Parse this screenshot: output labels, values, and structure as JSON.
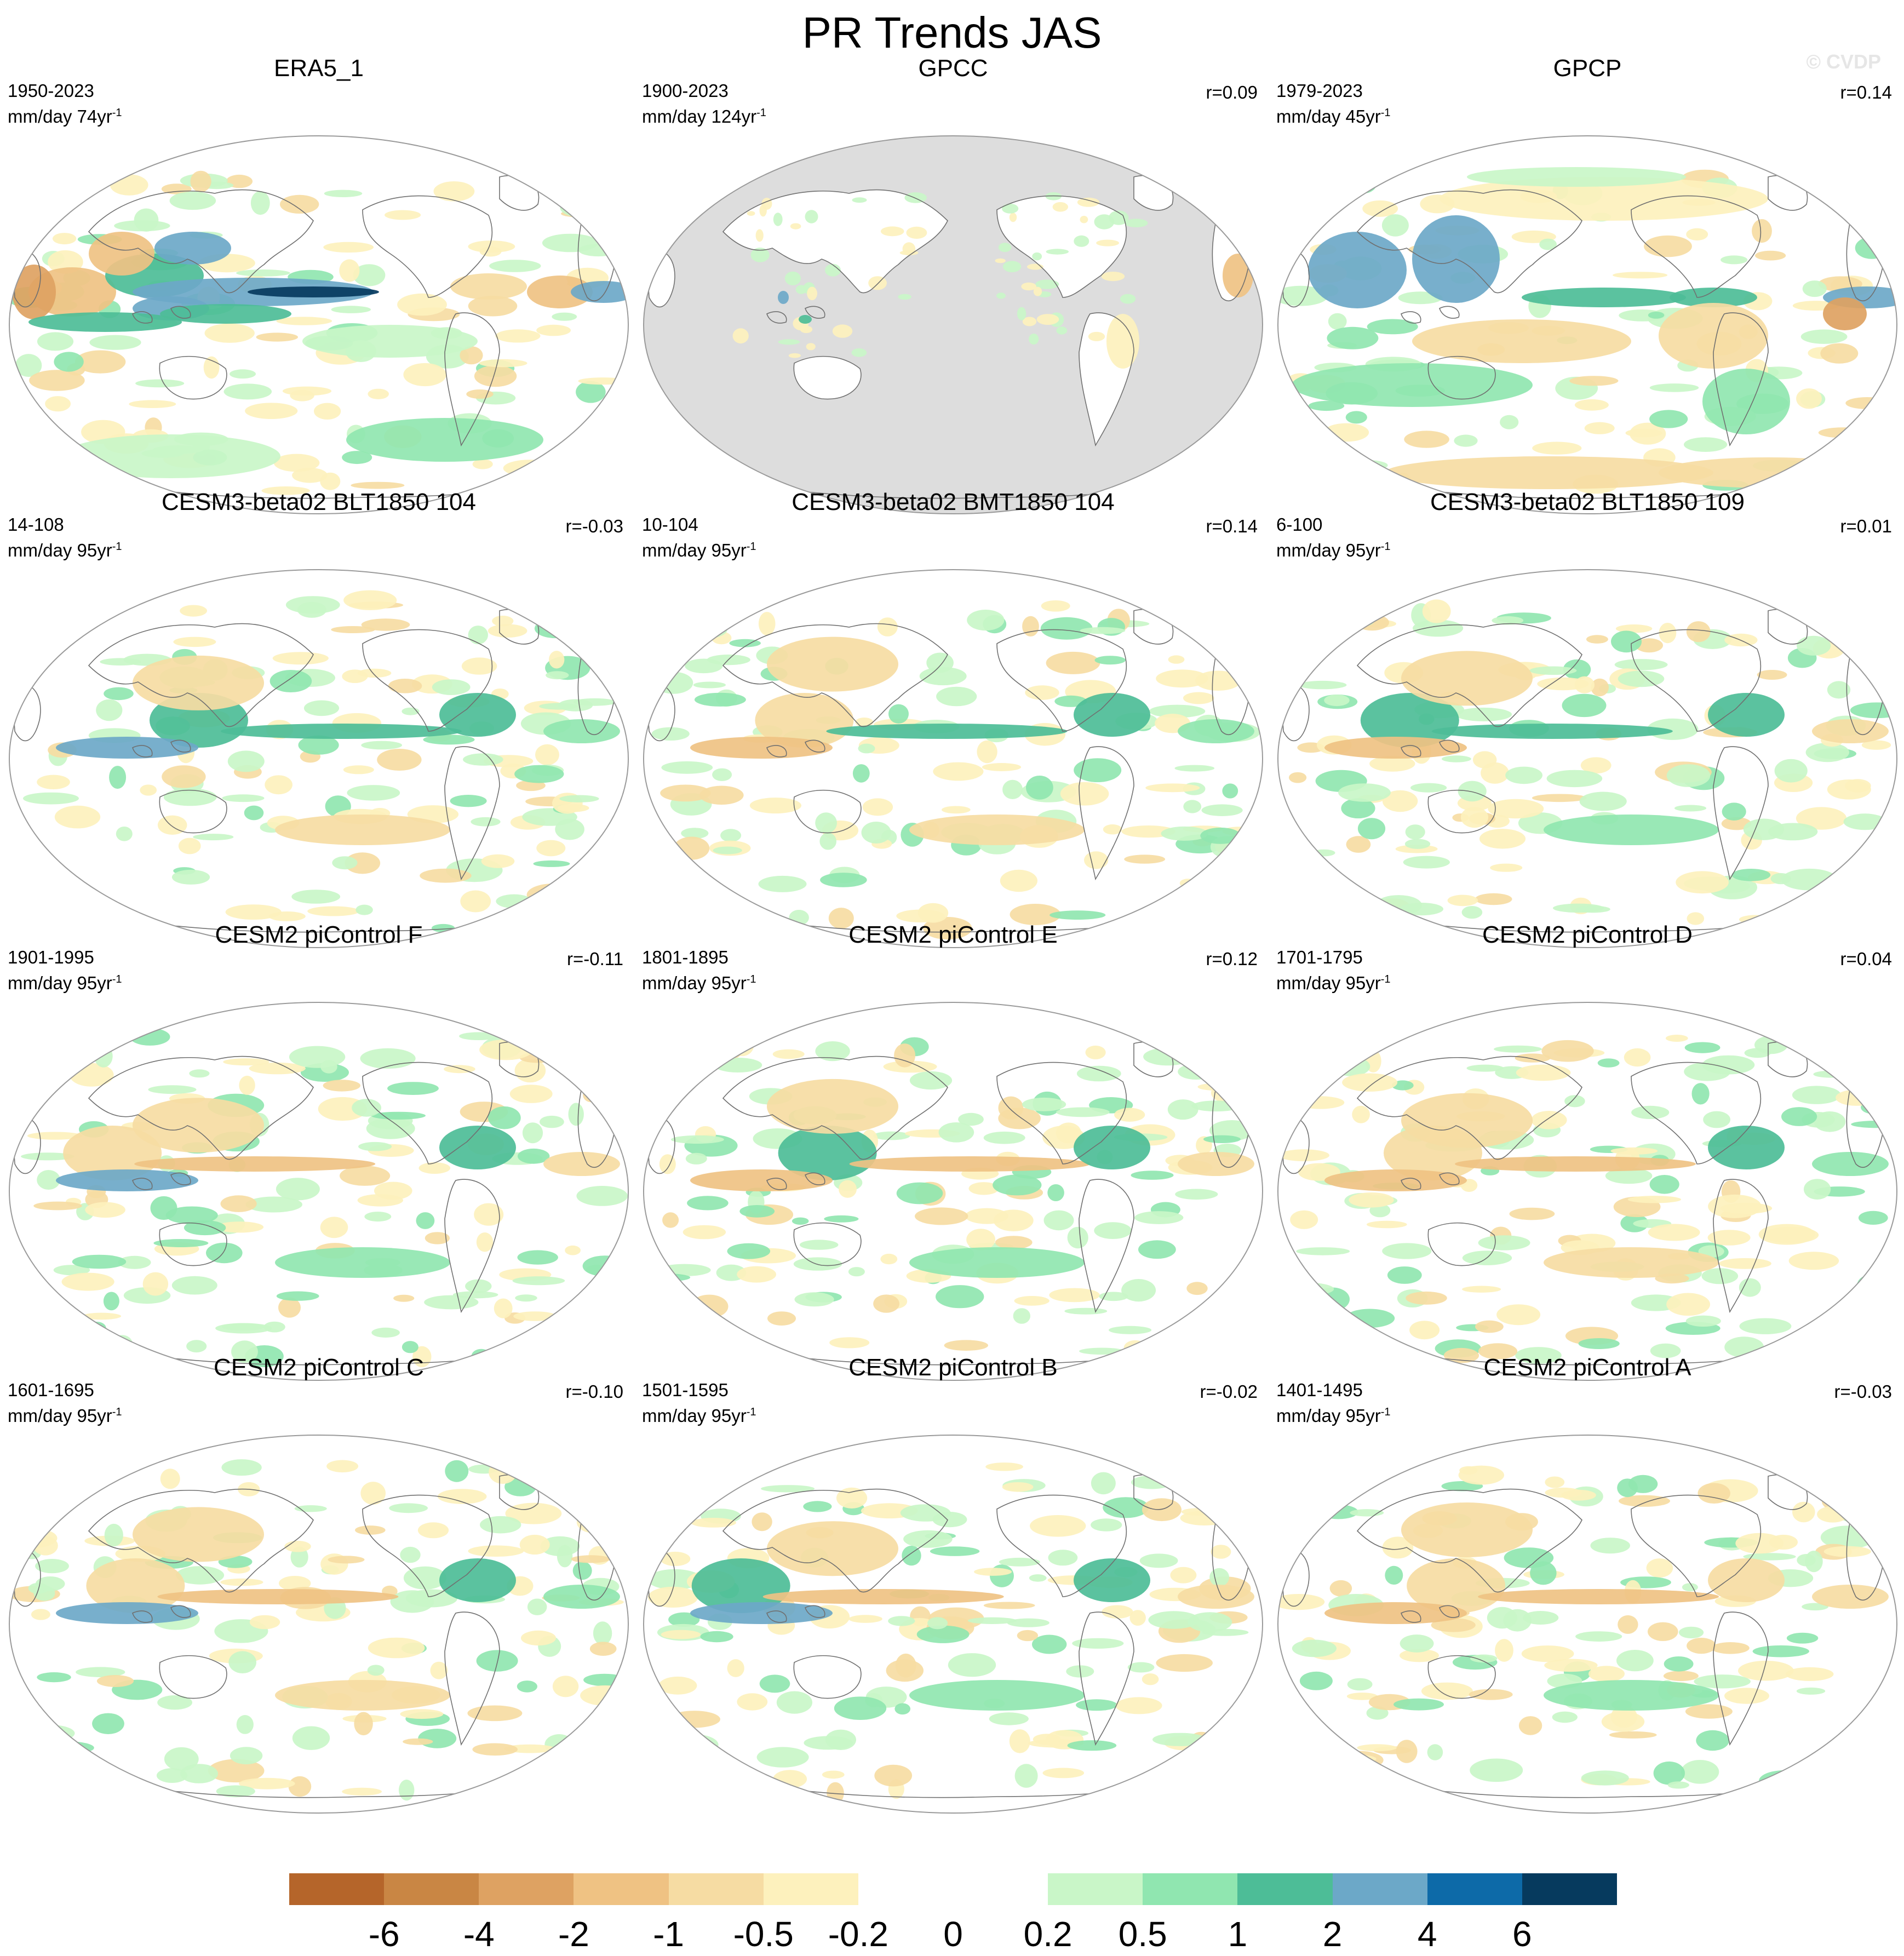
{
  "title": "PR Trends JAS",
  "watermark": "© CVDP",
  "colors": {
    "ocean_outline": "#9a9a9a",
    "land_gpcc_mask": "#dddddd",
    "coast": "#707070"
  },
  "panels": [
    {
      "title": "ERA5_1",
      "period": "1950-2023",
      "units_base": "mm/day 74yr",
      "units_sup": "-1",
      "corr": "",
      "pattern": "era5",
      "mask_ocean": false
    },
    {
      "title": "GPCC",
      "period": "1900-2023",
      "units_base": "mm/day 124yr",
      "units_sup": "-1",
      "corr": "r=0.09",
      "pattern": "gpcc",
      "mask_ocean": true
    },
    {
      "title": "GPCP",
      "period": "1979-2023",
      "units_base": "mm/day 45yr",
      "units_sup": "-1",
      "corr": "r=0.14",
      "pattern": "gpcp",
      "mask_ocean": false
    },
    {
      "title": "CESM3-beta02 BLT1850 104",
      "period": "14-108",
      "units_base": "mm/day 95yr",
      "units_sup": "-1",
      "corr": "r=-0.03",
      "pattern": "m1",
      "mask_ocean": false
    },
    {
      "title": "CESM3-beta02 BMT1850 104",
      "period": "10-104",
      "units_base": "mm/day 95yr",
      "units_sup": "-1",
      "corr": "r=0.14",
      "pattern": "m2",
      "mask_ocean": false
    },
    {
      "title": "CESM3-beta02 BLT1850 109",
      "period": "6-100",
      "units_base": "mm/day 95yr",
      "units_sup": "-1",
      "corr": "r=0.01",
      "pattern": "m3",
      "mask_ocean": false
    },
    {
      "title": "CESM2 piControl F",
      "period": "1901-1995",
      "units_base": "mm/day 95yr",
      "units_sup": "-1",
      "corr": "r=-0.11",
      "pattern": "m4",
      "mask_ocean": false
    },
    {
      "title": "CESM2 piControl E",
      "period": "1801-1895",
      "units_base": "mm/day 95yr",
      "units_sup": "-1",
      "corr": "r=0.12",
      "pattern": "m5",
      "mask_ocean": false
    },
    {
      "title": "CESM2 piControl D",
      "period": "1701-1795",
      "units_base": "mm/day 95yr",
      "units_sup": "-1",
      "corr": "r=0.04",
      "pattern": "m6",
      "mask_ocean": false
    },
    {
      "title": "CESM2 piControl C",
      "period": "1601-1695",
      "units_base": "mm/day 95yr",
      "units_sup": "-1",
      "corr": "r=-0.10",
      "pattern": "m7",
      "mask_ocean": false
    },
    {
      "title": "CESM2 piControl B",
      "period": "1501-1595",
      "units_base": "mm/day 95yr",
      "units_sup": "-1",
      "corr": "r=-0.02",
      "pattern": "m8",
      "mask_ocean": false
    },
    {
      "title": "CESM2 piControl A",
      "period": "1401-1495",
      "units_base": "mm/day 95yr",
      "units_sup": "-1",
      "corr": "r=-0.03",
      "pattern": "m9",
      "mask_ocean": false
    }
  ],
  "colorbar": {
    "colors": [
      "#b5652a",
      "#c98644",
      "#dea262",
      "#efc283",
      "#f6dca3",
      "#fdf1bd",
      "#ffffff",
      "#ffffff",
      "#c9f6c8",
      "#90e6b0",
      "#4dbd97",
      "#6ca8c8",
      "#0d6aa8",
      "#063a5e"
    ],
    "labels": [
      "-6",
      "-4",
      "-2",
      "-1",
      "-0.5",
      "-0.2",
      "0",
      "0.2",
      "0.5",
      "1",
      "2",
      "4",
      "6"
    ]
  }
}
